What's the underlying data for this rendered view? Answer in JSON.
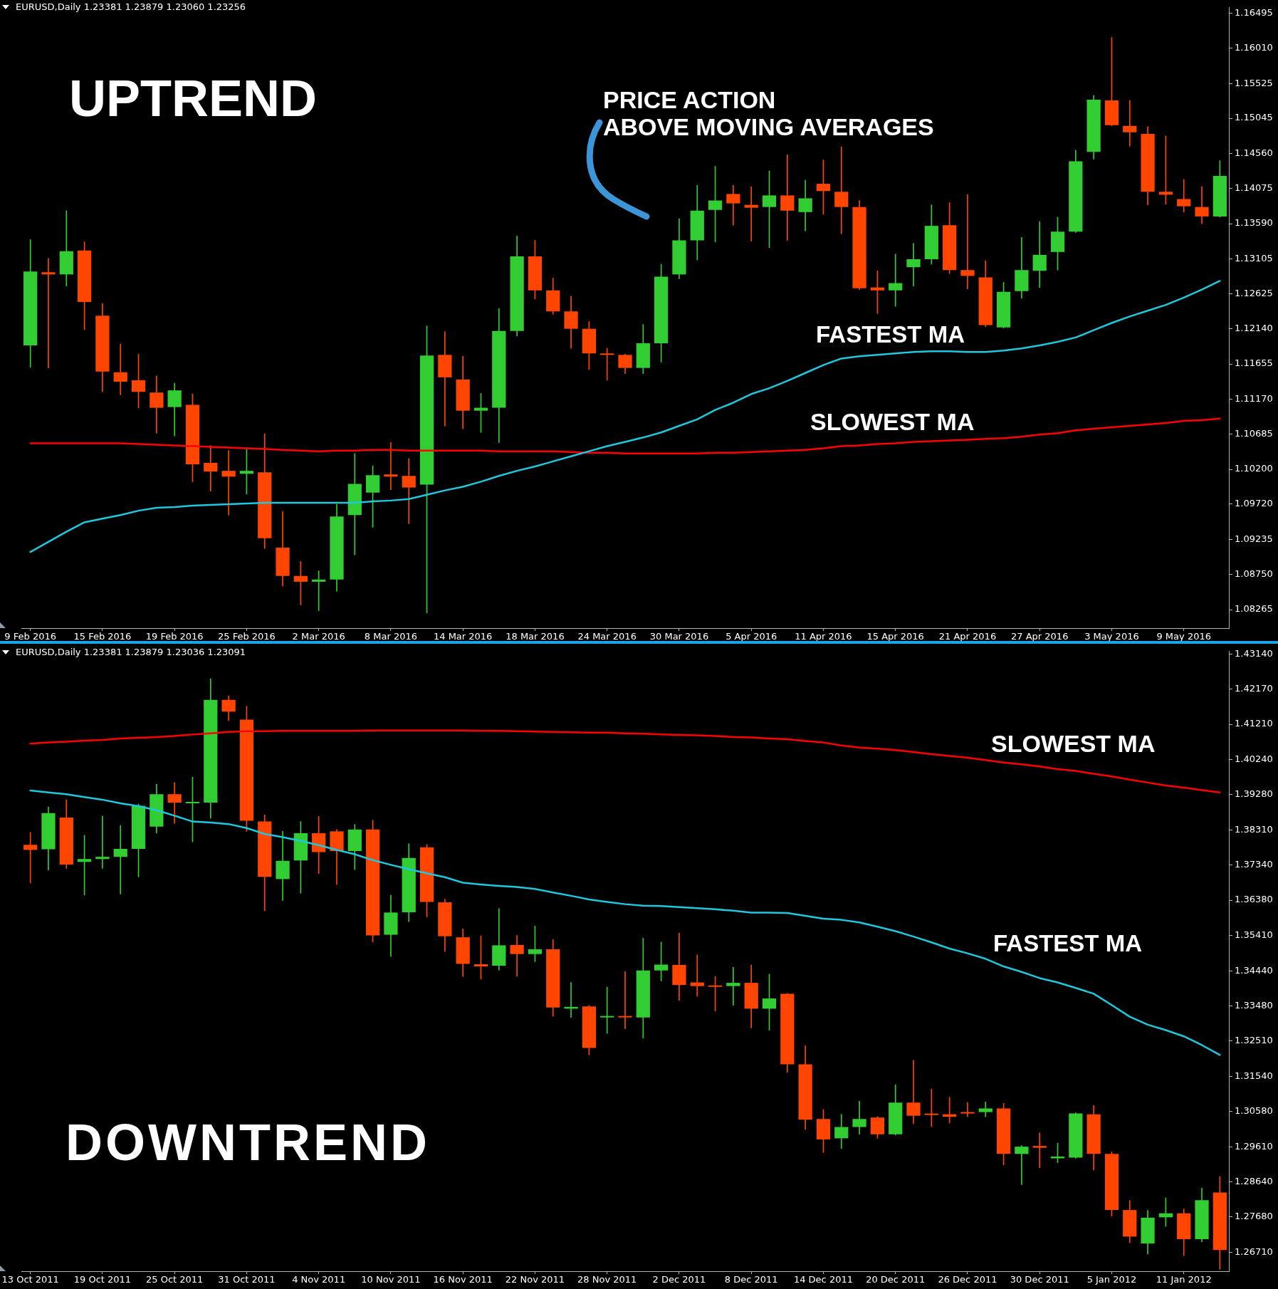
{
  "chart_data": [
    {
      "type": "candlestick",
      "title": "EURUSD,Daily 1.23381 1.23879 1.23060 1.23256",
      "categories": [
        "9 Feb 2016",
        null,
        null,
        null,
        "15 Feb 2016",
        null,
        null,
        null,
        "19 Feb 2016",
        null,
        null,
        null,
        "25 Feb 2016",
        null,
        null,
        null,
        "2 Mar 2016",
        null,
        null,
        null,
        "8 Mar 2016",
        null,
        null,
        null,
        "14 Mar 2016",
        null,
        null,
        null,
        "18 Mar 2016",
        null,
        null,
        null,
        "24 Mar 2016",
        null,
        null,
        null,
        "30 Mar 2016",
        null,
        null,
        null,
        "5 Apr 2016",
        null,
        null,
        null,
        "11 Apr 2016",
        null,
        null,
        null,
        "15 Apr 2016",
        null,
        null,
        null,
        "21 Apr 2016",
        null,
        null,
        null,
        "27 Apr 2016",
        null,
        null,
        null,
        "3 May 2016",
        null,
        null,
        null,
        "9 May 2016",
        null,
        null
      ],
      "ohlc": [
        [
          1.1191,
          1.1337,
          1.1161,
          1.1293
        ],
        [
          1.1292,
          1.1311,
          1.116,
          1.1289
        ],
        [
          1.1289,
          1.1377,
          1.1273,
          1.1321
        ],
        [
          1.1322,
          1.1334,
          1.1213,
          1.1251
        ],
        [
          1.1232,
          1.1249,
          1.1127,
          1.1155
        ],
        [
          1.1154,
          1.1193,
          1.1123,
          1.1141
        ],
        [
          1.1143,
          1.1179,
          1.1105,
          1.1127
        ],
        [
          1.1126,
          1.1149,
          1.107,
          1.1105
        ],
        [
          1.1106,
          1.1139,
          1.1066,
          1.1129
        ],
        [
          1.1109,
          1.1124,
          1.1003,
          1.1027
        ],
        [
          1.1029,
          1.1053,
          1.099,
          1.1017
        ],
        [
          1.1018,
          1.1046,
          1.0957,
          1.101
        ],
        [
          1.1014,
          1.105,
          1.0986,
          1.1018
        ],
        [
          1.1016,
          1.1069,
          1.0911,
          1.0925
        ],
        [
          1.0912,
          1.0962,
          1.0859,
          1.0873
        ],
        [
          1.0873,
          1.0893,
          1.0833,
          1.0865
        ],
        [
          1.0865,
          1.088,
          1.0825,
          1.0868
        ],
        [
          1.0868,
          1.0972,
          1.0852,
          1.0955
        ],
        [
          1.0957,
          1.1042,
          1.0902,
          1.1
        ],
        [
          1.0988,
          1.1025,
          1.094,
          1.1012
        ],
        [
          1.1013,
          1.1057,
          1.0992,
          1.101
        ],
        [
          1.1011,
          1.1035,
          1.0945,
          1.0995
        ],
        [
          1.0999,
          1.1218,
          1.0822,
          1.1177
        ],
        [
          1.1178,
          1.121,
          1.108,
          1.1147
        ],
        [
          1.1144,
          1.1176,
          1.1076,
          1.1101
        ],
        [
          1.1101,
          1.1125,
          1.1071,
          1.1105
        ],
        [
          1.1105,
          1.1242,
          1.1057,
          1.1211
        ],
        [
          1.1211,
          1.1342,
          1.1204,
          1.1314
        ],
        [
          1.1314,
          1.1336,
          1.1255,
          1.1267
        ],
        [
          1.1267,
          1.1284,
          1.1234,
          1.1238
        ],
        [
          1.1238,
          1.1259,
          1.1187,
          1.1214
        ],
        [
          1.1214,
          1.1224,
          1.1158,
          1.118
        ],
        [
          1.118,
          1.1187,
          1.1143,
          1.1178
        ],
        [
          1.1178,
          1.1179,
          1.1152,
          1.116
        ],
        [
          1.116,
          1.122,
          1.1152,
          1.1194
        ],
        [
          1.1194,
          1.1303,
          1.1168,
          1.1286
        ],
        [
          1.1289,
          1.1366,
          1.1283,
          1.1336
        ],
        [
          1.1336,
          1.1412,
          1.1309,
          1.1377
        ],
        [
          1.1378,
          1.1438,
          1.1334,
          1.1391
        ],
        [
          1.14,
          1.1412,
          1.1357,
          1.1387
        ],
        [
          1.1385,
          1.141,
          1.1335,
          1.1381
        ],
        [
          1.1382,
          1.1432,
          1.1326,
          1.1398
        ],
        [
          1.1398,
          1.1454,
          1.1336,
          1.1377
        ],
        [
          1.1375,
          1.1419,
          1.1349,
          1.1394
        ],
        [
          1.1414,
          1.1447,
          1.1372,
          1.1404
        ],
        [
          1.1403,
          1.1465,
          1.1345,
          1.1382
        ],
        [
          1.1382,
          1.1391,
          1.1268,
          1.127
        ],
        [
          1.1271,
          1.1294,
          1.1235,
          1.1267
        ],
        [
          1.1267,
          1.1317,
          1.1245,
          1.1277
        ],
        [
          1.1299,
          1.1332,
          1.1273,
          1.131
        ],
        [
          1.131,
          1.1385,
          1.1303,
          1.1356
        ],
        [
          1.1357,
          1.1388,
          1.129,
          1.1295
        ],
        [
          1.1295,
          1.1399,
          1.1269,
          1.1287
        ],
        [
          1.1285,
          1.1308,
          1.1217,
          1.1219
        ],
        [
          1.1216,
          1.1278,
          1.1215,
          1.1265
        ],
        [
          1.1266,
          1.134,
          1.1256,
          1.1295
        ],
        [
          1.1294,
          1.1362,
          1.1271,
          1.1316
        ],
        [
          1.132,
          1.1368,
          1.1295,
          1.1348
        ],
        [
          1.1348,
          1.146,
          1.1347,
          1.1445
        ],
        [
          1.1458,
          1.1536,
          1.1448,
          1.153
        ],
        [
          1.1529,
          1.1616,
          1.1494,
          1.1495
        ],
        [
          1.1494,
          1.1529,
          1.1466,
          1.1485
        ],
        [
          1.1483,
          1.1493,
          1.1385,
          1.1403
        ],
        [
          1.1403,
          1.148,
          1.1386,
          1.1399
        ],
        [
          1.1393,
          1.142,
          1.1375,
          1.1383
        ],
        [
          1.1382,
          1.141,
          1.1359,
          1.1369
        ],
        [
          1.1369,
          1.1446,
          1.1368,
          1.1425
        ]
      ],
      "colors": [
        "#32cd32",
        "#ff4500",
        "#32cd32",
        "#ff4500",
        "#ff4500",
        "#ff4500",
        "#ff4500",
        "#ff4500",
        "#32cd32",
        "#ff4500",
        "#ff4500",
        "#ff4500",
        "#32cd32",
        "#ff4500",
        "#ff4500",
        "#ff4500",
        "#32cd32",
        "#32cd32",
        "#32cd32",
        "#32cd32",
        "#ff4500",
        "#ff4500",
        "#32cd32",
        "#ff4500",
        "#ff4500",
        "#32cd32",
        "#32cd32",
        "#32cd32",
        "#ff4500",
        "#ff4500",
        "#ff4500",
        "#ff4500",
        "#ff4500",
        "#ff4500",
        "#32cd32",
        "#32cd32",
        "#32cd32",
        "#32cd32",
        "#32cd32",
        "#ff4500",
        "#ff4500",
        "#32cd32",
        "#ff4500",
        "#32cd32",
        "#ff4500",
        "#ff4500",
        "#ff4500",
        "#ff4500",
        "#32cd32",
        "#32cd32",
        "#32cd32",
        "#ff4500",
        "#ff4500",
        "#ff4500",
        "#32cd32",
        "#32cd32",
        "#32cd32",
        "#32cd32",
        "#32cd32",
        "#32cd32",
        "#ff4500",
        "#ff4500",
        "#ff4500",
        "#ff4500",
        "#ff4500",
        "#ff4500",
        "#32cd32"
      ],
      "series": [
        {
          "type": "line",
          "color": "#1fc8dc",
          "values": [
            1.0906,
            1.092,
            1.0934,
            1.0947,
            1.0952,
            1.0957,
            1.0963,
            1.0967,
            1.0968,
            1.097,
            1.0971,
            1.0972,
            1.0973,
            1.0974,
            1.0974,
            1.0974,
            1.0974,
            1.0974,
            1.0974,
            1.0976,
            1.0977,
            1.0979,
            1.0985,
            1.0991,
            1.0996,
            1.1003,
            1.1011,
            1.1018,
            1.1024,
            1.1031,
            1.1038,
            1.1045,
            1.1052,
            1.1058,
            1.1064,
            1.1071,
            1.108,
            1.1089,
            1.1102,
            1.1112,
            1.1124,
            1.1132,
            1.1142,
            1.1153,
            1.1164,
            1.1173,
            1.1176,
            1.1178,
            1.118,
            1.1182,
            1.1183,
            1.1183,
            1.1182,
            1.1182,
            1.1184,
            1.1187,
            1.1191,
            1.1196,
            1.1202,
            1.1212,
            1.1222,
            1.1231,
            1.1239,
            1.1247,
            1.1257,
            1.1268,
            1.128
          ]
        },
        {
          "type": "line",
          "color": "#ff0000",
          "values": [
            1.1056,
            1.1056,
            1.1056,
            1.1056,
            1.1056,
            1.1056,
            1.1055,
            1.1054,
            1.1053,
            1.1052,
            1.1051,
            1.105,
            1.1049,
            1.1048,
            1.1047,
            1.1046,
            1.1045,
            1.1046,
            1.1046,
            1.1047,
            1.1047,
            1.1046,
            1.1046,
            1.1046,
            1.1046,
            1.1046,
            1.1045,
            1.1045,
            1.1045,
            1.1045,
            1.1044,
            1.1043,
            1.1043,
            1.1042,
            1.1042,
            1.1042,
            1.1042,
            1.1042,
            1.1043,
            1.1043,
            1.1044,
            1.1045,
            1.1046,
            1.1047,
            1.1049,
            1.1052,
            1.1053,
            1.1055,
            1.1056,
            1.1058,
            1.1059,
            1.106,
            1.1061,
            1.1062,
            1.1063,
            1.1065,
            1.1068,
            1.107,
            1.1074,
            1.1076,
            1.1078,
            1.108,
            1.1082,
            1.1084,
            1.1087,
            1.1088,
            1.109
          ]
        }
      ],
      "ylim": [
        1.0801,
        1.1657
      ],
      "yticks": [
        1.16495,
        {
          "value": 1.1601,
          "label": "1.16010"
        },
        1.15525,
        1.15045,
        {
          "value": 1.1456,
          "label": "1.14560"
        },
        1.14075,
        {
          "value": 1.1359,
          "label": "1.13590"
        },
        1.13105,
        1.12625,
        {
          "value": 1.1214,
          "label": "1.12140"
        },
        1.11655,
        {
          "value": 1.1117,
          "label": "1.11170"
        },
        1.10685,
        {
          "value": 1.102,
          "label": "1.10200"
        },
        {
          "value": 1.0972,
          "label": "1.09720"
        },
        1.09235,
        {
          "value": 1.0875,
          "label": "1.08750"
        },
        1.08265
      ],
      "annotations": [
        "UPTREND",
        "PRICE ACTION\nABOVE MOVING AVERAGES",
        "FASTEST MA",
        "SLOWEST MA"
      ]
    },
    {
      "type": "candlestick",
      "title": "EURUSD,Daily 1.23381 1.23879 1.23036 1.23091",
      "categories": [
        "13 Oct 2011",
        null,
        null,
        null,
        "19 Oct 2011",
        null,
        null,
        null,
        "25 Oct 2011",
        null,
        null,
        null,
        "31 Oct 2011",
        null,
        null,
        null,
        "4 Nov 2011",
        null,
        null,
        null,
        "10 Nov 2011",
        null,
        null,
        null,
        "16 Nov 2011",
        null,
        null,
        null,
        "22 Nov 2011",
        null,
        null,
        null,
        "28 Nov 2011",
        null,
        null,
        null,
        "2 Dec 2011",
        null,
        null,
        null,
        "8 Dec 2011",
        null,
        null,
        null,
        "14 Dec 2011",
        null,
        null,
        null,
        "20 Dec 2011",
        null,
        null,
        null,
        "26 Dec 2011",
        null,
        null,
        null,
        "30 Dec 2011",
        null,
        null,
        null,
        "5 Jan 2012",
        null,
        null,
        null,
        "11 Jan 2012",
        null,
        null
      ],
      "ohlc": [
        [
          1.379,
          1.3824,
          1.3685,
          1.3776
        ],
        [
          1.3778,
          1.3894,
          1.3721,
          1.3877
        ],
        [
          1.3865,
          1.3914,
          1.3725,
          1.3736
        ],
        [
          1.3743,
          1.3816,
          1.3652,
          1.3751
        ],
        [
          1.3751,
          1.3869,
          1.3725,
          1.3757
        ],
        [
          1.3757,
          1.3843,
          1.3655,
          1.3779
        ],
        [
          1.3779,
          1.3902,
          1.3702,
          1.3897
        ],
        [
          1.384,
          1.3956,
          1.3822,
          1.3929
        ],
        [
          1.3929,
          1.3961,
          1.3849,
          1.3906
        ],
        [
          1.3904,
          1.3976,
          1.3798,
          1.3905
        ],
        [
          1.3906,
          1.4246,
          1.3863,
          1.4188
        ],
        [
          1.4188,
          1.4199,
          1.4131,
          1.4156
        ],
        [
          1.4134,
          1.4171,
          1.3827,
          1.3856
        ],
        [
          1.3854,
          1.3872,
          1.3609,
          1.3702
        ],
        [
          1.3696,
          1.3827,
          1.3637,
          1.3746
        ],
        [
          1.3747,
          1.3854,
          1.3657,
          1.3822
        ],
        [
          1.3822,
          1.3868,
          1.3711,
          1.377
        ],
        [
          1.3827,
          1.3832,
          1.3681,
          1.3773
        ],
        [
          1.3773,
          1.3846,
          1.3722,
          1.3832
        ],
        [
          1.3832,
          1.3858,
          1.3523,
          1.3541
        ],
        [
          1.3543,
          1.3652,
          1.3483,
          1.3604
        ],
        [
          1.3605,
          1.3793,
          1.3579,
          1.3754
        ],
        [
          1.3783,
          1.3791,
          1.3592,
          1.3633
        ],
        [
          1.3632,
          1.3641,
          1.3497,
          1.3539
        ],
        [
          1.3536,
          1.3559,
          1.3428,
          1.3463
        ],
        [
          1.3462,
          1.354,
          1.3421,
          1.3456
        ],
        [
          1.3458,
          1.3615,
          1.3446,
          1.3514
        ],
        [
          1.3515,
          1.3541,
          1.3429,
          1.349
        ],
        [
          1.349,
          1.3567,
          1.3469,
          1.3503
        ],
        [
          1.3503,
          1.353,
          1.3319,
          1.3343
        ],
        [
          1.334,
          1.3412,
          1.3316,
          1.3345
        ],
        [
          1.3346,
          1.3349,
          1.3213,
          1.3232
        ],
        [
          1.3316,
          1.3399,
          1.3272,
          1.3319
        ],
        [
          1.3319,
          1.3442,
          1.3285,
          1.3316
        ],
        [
          1.3316,
          1.3534,
          1.3259,
          1.3445
        ],
        [
          1.3445,
          1.3523,
          1.3416,
          1.3461
        ],
        [
          1.346,
          1.3548,
          1.3363,
          1.3405
        ],
        [
          1.3412,
          1.3488,
          1.3374,
          1.3402
        ],
        [
          1.3401,
          1.3428,
          1.3334,
          1.34
        ],
        [
          1.3402,
          1.3454,
          1.3349,
          1.3411
        ],
        [
          1.3411,
          1.346,
          1.3287,
          1.334
        ],
        [
          1.334,
          1.3435,
          1.3281,
          1.3368
        ],
        [
          1.3381,
          1.3382,
          1.3165,
          1.3187
        ],
        [
          1.3187,
          1.3238,
          1.3009,
          1.3035
        ],
        [
          1.3037,
          1.3063,
          1.2945,
          1.2981
        ],
        [
          1.2984,
          1.305,
          1.2956,
          1.3015
        ],
        [
          1.3015,
          1.3086,
          1.2995,
          1.3037
        ],
        [
          1.3041,
          1.3044,
          1.2984,
          1.2995
        ],
        [
          1.2995,
          1.3131,
          1.2993,
          1.3082
        ],
        [
          1.3082,
          1.3198,
          1.3024,
          1.3046
        ],
        [
          1.305,
          1.3119,
          1.3016,
          1.3048
        ],
        [
          1.305,
          1.3097,
          1.3026,
          1.3043
        ],
        [
          1.3056,
          1.3082,
          1.3043,
          1.3052
        ],
        [
          1.3056,
          1.3084,
          1.3043,
          1.3066
        ],
        [
          1.3066,
          1.308,
          1.2911,
          1.2941
        ],
        [
          1.2941,
          1.2964,
          1.2857,
          1.2961
        ],
        [
          1.2963,
          1.2999,
          1.2903,
          1.2958
        ],
        [
          1.2929,
          1.2971,
          1.2917,
          1.2934
        ],
        [
          1.2931,
          1.3054,
          1.2929,
          1.3052
        ],
        [
          1.305,
          1.3074,
          1.2897,
          1.2941
        ],
        [
          1.2941,
          1.2947,
          1.277,
          1.2787
        ],
        [
          1.2787,
          1.2813,
          1.2697,
          1.2714
        ],
        [
          1.2695,
          1.2786,
          1.2666,
          1.2766
        ],
        [
          1.2767,
          1.282,
          1.2742,
          1.2778
        ],
        [
          1.2778,
          1.279,
          1.2662,
          1.2707
        ],
        [
          1.2707,
          1.2847,
          1.27,
          1.2814
        ],
        [
          1.2835,
          1.2879,
          1.2624,
          1.2677
        ]
      ],
      "colors": [
        "#ff4500",
        "#32cd32",
        "#ff4500",
        "#32cd32",
        "#32cd32",
        "#32cd32",
        "#32cd32",
        "#32cd32",
        "#ff4500",
        "#32cd32",
        "#32cd32",
        "#ff4500",
        "#ff4500",
        "#ff4500",
        "#32cd32",
        "#32cd32",
        "#ff4500",
        "#ff4500",
        "#32cd32",
        "#ff4500",
        "#32cd32",
        "#32cd32",
        "#ff4500",
        "#ff4500",
        "#ff4500",
        "#ff4500",
        "#32cd32",
        "#ff4500",
        "#32cd32",
        "#ff4500",
        "#32cd32",
        "#ff4500",
        "#32cd32",
        "#ff4500",
        "#32cd32",
        "#32cd32",
        "#ff4500",
        "#ff4500",
        "#ff4500",
        "#32cd32",
        "#ff4500",
        "#32cd32",
        "#ff4500",
        "#ff4500",
        "#ff4500",
        "#32cd32",
        "#32cd32",
        "#ff4500",
        "#32cd32",
        "#ff4500",
        "#ff4500",
        "#ff4500",
        "#ff4500",
        "#32cd32",
        "#ff4500",
        "#32cd32",
        "#ff4500",
        "#32cd32",
        "#32cd32",
        "#ff4500",
        "#ff4500",
        "#ff4500",
        "#32cd32",
        "#32cd32",
        "#ff4500",
        "#32cd32",
        "#ff4500"
      ],
      "series": [
        {
          "type": "line",
          "color": "#1fc8dc",
          "values": [
            1.3939,
            1.3934,
            1.3929,
            1.3921,
            1.3914,
            1.3904,
            1.3896,
            1.3885,
            1.387,
            1.3854,
            1.3851,
            1.3847,
            1.3836,
            1.382,
            1.3811,
            1.3801,
            1.3789,
            1.3776,
            1.3764,
            1.3748,
            1.3735,
            1.3723,
            1.3712,
            1.3701,
            1.3686,
            1.3681,
            1.3677,
            1.3674,
            1.3669,
            1.3659,
            1.365,
            1.364,
            1.3633,
            1.3627,
            1.3623,
            1.3622,
            1.3619,
            1.3616,
            1.3613,
            1.3609,
            1.3604,
            1.3604,
            1.3603,
            1.3595,
            1.3587,
            1.3584,
            1.3577,
            1.3565,
            1.3553,
            1.3538,
            1.3522,
            1.3505,
            1.3492,
            1.3477,
            1.3456,
            1.3441,
            1.3424,
            1.3412,
            1.3397,
            1.3381,
            1.335,
            1.3318,
            1.3296,
            1.3281,
            1.3264,
            1.324,
            1.3213
          ]
        },
        {
          "type": "line",
          "color": "#ff0000",
          "values": [
            1.4068,
            1.4071,
            1.4073,
            1.4076,
            1.4078,
            1.4082,
            1.4084,
            1.4086,
            1.4089,
            1.4093,
            1.4096,
            1.41,
            1.4102,
            1.4102,
            1.4103,
            1.4103,
            1.4103,
            1.4103,
            1.4103,
            1.4104,
            1.4104,
            1.4104,
            1.4104,
            1.4104,
            1.4104,
            1.4103,
            1.4103,
            1.4102,
            1.4101,
            1.41,
            1.4099,
            1.4098,
            1.4098,
            1.4096,
            1.4095,
            1.4093,
            1.4092,
            1.4091,
            1.4089,
            1.4086,
            1.4085,
            1.4082,
            1.408,
            1.4075,
            1.4071,
            1.4063,
            1.4057,
            1.4054,
            1.405,
            1.4045,
            1.4039,
            1.4034,
            1.4029,
            1.4023,
            1.4016,
            1.4011,
            1.4005,
            1.3998,
            1.3993,
            1.3985,
            1.3978,
            1.3969,
            1.3961,
            1.3953,
            1.3947,
            1.394,
            1.3934
          ]
        }
      ],
      "ylim": [
        1.2619,
        1.4321
      ],
      "yticks": [
        {
          "value": 1.4314,
          "label": "1.43140"
        },
        {
          "value": 1.4217,
          "label": "1.42170"
        },
        {
          "value": 1.4121,
          "label": "1.41210"
        },
        {
          "value": 1.4024,
          "label": "1.40240"
        },
        {
          "value": 1.3928,
          "label": "1.39280"
        },
        {
          "value": 1.3831,
          "label": "1.38310"
        },
        {
          "value": 1.3734,
          "label": "1.37340"
        },
        {
          "value": 1.3638,
          "label": "1.36380"
        },
        {
          "value": 1.3541,
          "label": "1.35410"
        },
        {
          "value": 1.3444,
          "label": "1.34440"
        },
        {
          "value": 1.3348,
          "label": "1.33480"
        },
        {
          "value": 1.3251,
          "label": "1.32510"
        },
        {
          "value": 1.3154,
          "label": "1.31540"
        },
        {
          "value": 1.3058,
          "label": "1.30580"
        },
        {
          "value": 1.2961,
          "label": "1.29610"
        },
        {
          "value": 1.2864,
          "label": "1.28640"
        },
        {
          "value": 1.2768,
          "label": "1.27680"
        },
        {
          "value": 1.2671,
          "label": "1.26710"
        }
      ],
      "annotations": [
        "SLOWEST MA",
        "FASTEST MA",
        "DOWNTREND"
      ]
    }
  ]
}
